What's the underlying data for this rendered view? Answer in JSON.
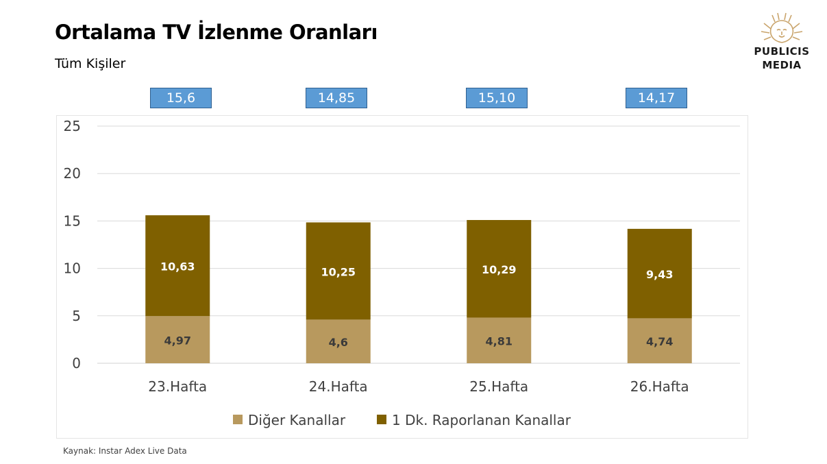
{
  "header": {
    "title": "Ortalama TV İzlenme Oranları",
    "subtitle": "Tüm Kişiler"
  },
  "logo": {
    "line1": "PUBLICIS",
    "line2": "MEDIA",
    "icon": "lion-head-icon"
  },
  "totals": [
    "15,6",
    "14,85",
    "15,10",
    "14,17"
  ],
  "chart_data": {
    "type": "bar",
    "stacked": true,
    "categories": [
      "23.Hafta",
      "24.Hafta",
      "25.Hafta",
      "26.Hafta"
    ],
    "series": [
      {
        "name": "Diğer Kanallar",
        "values": [
          4.97,
          4.6,
          4.81,
          4.74
        ],
        "labels": [
          "4,97",
          "4,6",
          "4,81",
          "4,74"
        ],
        "color": "#b8995e",
        "label_color": "#3a3a3a"
      },
      {
        "name": "1 Dk. Raporlanan Kanallar",
        "values": [
          10.63,
          10.25,
          10.29,
          9.43
        ],
        "labels": [
          "10,63",
          "10,25",
          "10,29",
          "9,43"
        ],
        "color": "#7f6000",
        "label_color": "#ffffff"
      }
    ],
    "ylim": [
      0,
      25
    ],
    "yticks": [
      0,
      5,
      10,
      15,
      20,
      25
    ],
    "grid": true,
    "legend": "bottom"
  },
  "footer": {
    "source": "Kaynak: Instar  Adex Live Data"
  }
}
